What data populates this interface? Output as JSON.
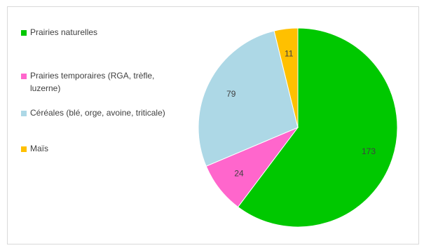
{
  "chart_data": {
    "type": "pie",
    "title": "",
    "legend_position": "left",
    "slices": [
      {
        "label": "Prairies naturelles",
        "value": 173,
        "color": "#00c800"
      },
      {
        "label": "Prairies temporaires (RGA, trèfle, luzerne)",
        "value": 24,
        "color": "#ff66cc"
      },
      {
        "label": "Céréales (blé, orge, avoine, triticale)",
        "value": 79,
        "color": "#add8e6"
      },
      {
        "label": "Maïs",
        "value": 11,
        "color": "#ffc000"
      }
    ]
  }
}
